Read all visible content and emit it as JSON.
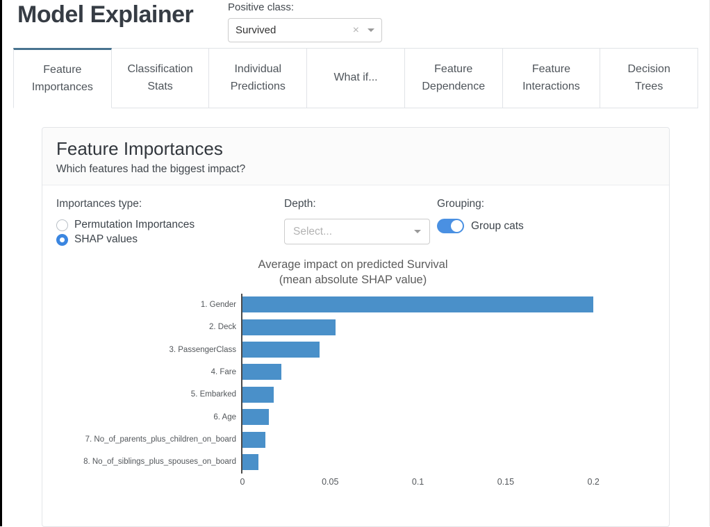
{
  "header": {
    "title": "Model Explainer",
    "positive_class_label": "Positive class:",
    "positive_class_value": "Survived"
  },
  "tabs": [
    {
      "label": "Feature Importances",
      "active": true
    },
    {
      "label": "Classification Stats",
      "active": false
    },
    {
      "label": "Individual Predictions",
      "active": false
    },
    {
      "label": "What if...",
      "active": false
    },
    {
      "label": "Feature Dependence",
      "active": false
    },
    {
      "label": "Feature Interactions",
      "active": false
    },
    {
      "label": "Decision Trees",
      "active": false
    }
  ],
  "card": {
    "title": "Feature Importances",
    "subtitle": "Which features had the biggest impact?"
  },
  "controls": {
    "importances_type": {
      "label": "Importances type:",
      "options": [
        {
          "label": "Permutation Importances",
          "selected": false
        },
        {
          "label": "SHAP values",
          "selected": true
        }
      ]
    },
    "depth": {
      "label": "Depth:",
      "placeholder": "Select..."
    },
    "grouping": {
      "label": "Grouping:",
      "toggle_label": "Group cats",
      "toggle_on": true
    }
  },
  "chart_data": {
    "type": "bar",
    "orientation": "horizontal",
    "title": "Average impact on predicted Survival",
    "subtitle": "(mean absolute SHAP value)",
    "categories": [
      "1. Gender",
      "2. Deck",
      "3. PassengerClass",
      "4. Fare",
      "5. Embarked",
      "6. Age",
      "7. No_of_parents_plus_children_on_board",
      "8. No_of_siblings_plus_spouses_on_board"
    ],
    "values": [
      0.2,
      0.053,
      0.044,
      0.022,
      0.018,
      0.015,
      0.013,
      0.009
    ],
    "xlabel": "",
    "ylabel": "",
    "xticks": [
      0,
      0.05,
      0.1,
      0.15,
      0.2
    ],
    "xlim": [
      0,
      0.232
    ],
    "grid": false,
    "legend": false,
    "bar_color": "#4a90c9"
  },
  "colors": {
    "accent_blue": "#3b86e0",
    "toggle_blue": "#4a90e2",
    "active_tab_indicator": "#48738f",
    "bar_blue": "#4a90c9"
  }
}
